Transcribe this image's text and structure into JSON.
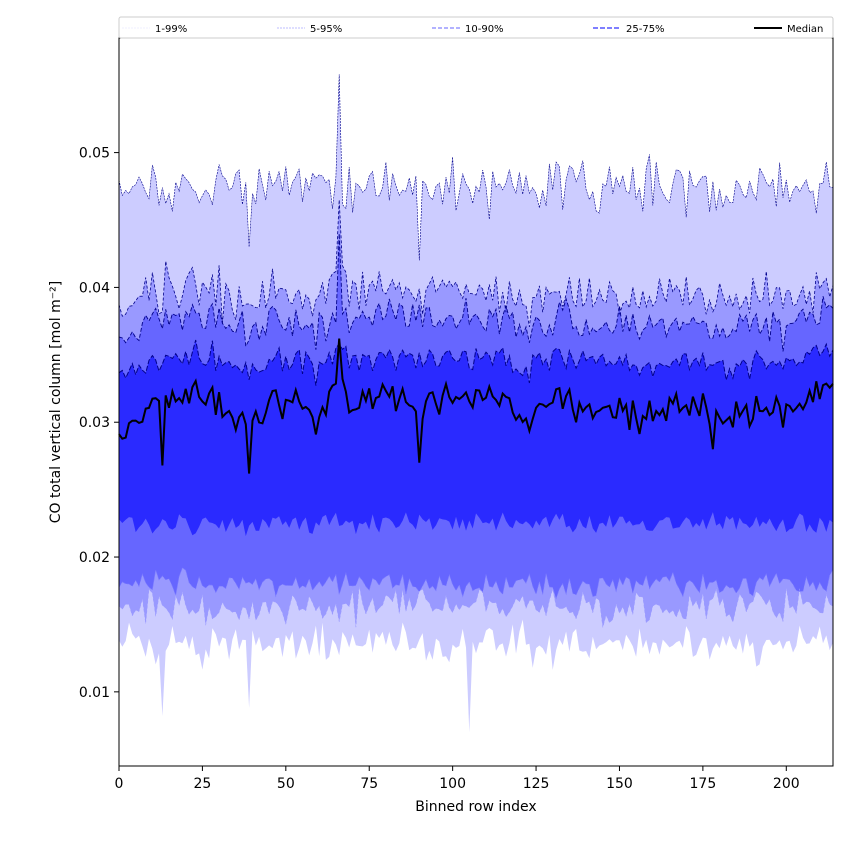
{
  "chart_data": {
    "type": "area",
    "xlabel": "Binned row index",
    "ylabel": "CO total vertical column [mol m⁻²]",
    "xlim": [
      0,
      214
    ],
    "ylim": [
      0.0045,
      0.0585
    ],
    "x_ticks": [
      "0",
      "25",
      "50",
      "75",
      "100",
      "125",
      "150",
      "175",
      "200"
    ],
    "x_tick_values": [
      0,
      25,
      50,
      75,
      100,
      125,
      150,
      175,
      200
    ],
    "y_ticks": [
      "0.01",
      "0.02",
      "0.03",
      "0.04",
      "0.05"
    ],
    "y_tick_values": [
      0.01,
      0.02,
      0.03,
      0.04,
      0.05
    ],
    "grid": false,
    "legend_position": "top, above plot",
    "legend": [
      "1-99%",
      "5-95%",
      "10-90%",
      "25-75%",
      "Median"
    ],
    "colors": {
      "band_1_99": "#ccccff",
      "band_5_95": "#9999ff",
      "band_10_90": "#6666ff",
      "band_25_75": "#2a2aff",
      "edge": "#00008b",
      "median": "#000000"
    },
    "n_points": 215,
    "median_approx": {
      "x": [
        0,
        10,
        20,
        30,
        40,
        50,
        60,
        66,
        70,
        80,
        90,
        100,
        110,
        120,
        130,
        140,
        150,
        160,
        170,
        180,
        190,
        200,
        214
      ],
      "y": [
        0.029,
        0.031,
        0.032,
        0.031,
        0.03,
        0.032,
        0.03,
        0.034,
        0.031,
        0.032,
        0.031,
        0.032,
        0.032,
        0.03,
        0.032,
        0.031,
        0.031,
        0.03,
        0.032,
        0.03,
        0.031,
        0.031,
        0.033
      ]
    },
    "series": [
      {
        "name": "1-99%",
        "low_mean": 0.0135,
        "high_mean": 0.0475,
        "high_max": 0.0558,
        "low_min": 0.007
      },
      {
        "name": "5-95%",
        "low_mean": 0.0163,
        "high_mean": 0.0395
      },
      {
        "name": "10-90%",
        "low_mean": 0.018,
        "high_mean": 0.0375
      },
      {
        "name": "25-75%",
        "low_mean": 0.0225,
        "high_mean": 0.0345
      },
      {
        "name": "Median",
        "mean": 0.0312
      }
    ]
  }
}
